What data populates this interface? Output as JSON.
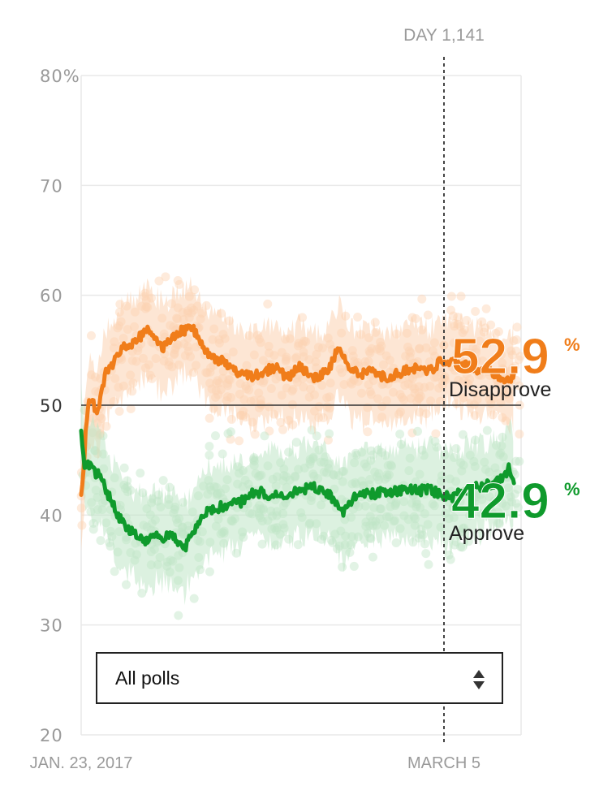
{
  "colors": {
    "disapprove": "#f07d1a",
    "approve": "#0f9a2c",
    "disapprove_light": "#fcd2b1",
    "approve_light": "#bfe5c6",
    "grid": "#e9e9e9",
    "text_muted": "#9a9a9a"
  },
  "chart_data": {
    "type": "line",
    "title": "",
    "xlabel": "",
    "ylabel": "",
    "x_tick_labels": [
      "JAN. 23, 2017",
      "MARCH 5"
    ],
    "y_ticks": [
      20,
      30,
      40,
      50,
      60,
      70,
      80
    ],
    "y_tick_labels": [
      "20",
      "30",
      "40",
      "50",
      "60",
      "70",
      "80%"
    ],
    "ylim": [
      20,
      80
    ],
    "x_range_days": [
      1,
      1174
    ],
    "reference_line": 50,
    "cursor": {
      "label": "DAY 1,141",
      "day": 1141
    },
    "grid": true,
    "series": [
      {
        "name": "Disapprove",
        "current_value": "52.9",
        "unit": "%",
        "points": [
          [
            1,
            41.5
          ],
          [
            6,
            43
          ],
          [
            12,
            47
          ],
          [
            18,
            49.5
          ],
          [
            25,
            50.5
          ],
          [
            35,
            50
          ],
          [
            45,
            49.3
          ],
          [
            55,
            51
          ],
          [
            65,
            53
          ],
          [
            80,
            53.5
          ],
          [
            100,
            54.5
          ],
          [
            120,
            55.5
          ],
          [
            140,
            55.7
          ],
          [
            160,
            56.3
          ],
          [
            180,
            57
          ],
          [
            200,
            56
          ],
          [
            220,
            55.3
          ],
          [
            240,
            55.8
          ],
          [
            260,
            56.7
          ],
          [
            280,
            56.8
          ],
          [
            300,
            57
          ],
          [
            320,
            55.5
          ],
          [
            340,
            54.5
          ],
          [
            360,
            54
          ],
          [
            380,
            54
          ],
          [
            400,
            53.6
          ],
          [
            420,
            53
          ],
          [
            440,
            52.7
          ],
          [
            460,
            52.6
          ],
          [
            480,
            53
          ],
          [
            500,
            53.2
          ],
          [
            520,
            53.4
          ],
          [
            540,
            52.8
          ],
          [
            560,
            52.6
          ],
          [
            580,
            53.5
          ],
          [
            600,
            53
          ],
          [
            620,
            52.5
          ],
          [
            640,
            52.8
          ],
          [
            660,
            53
          ],
          [
            690,
            55.5
          ],
          [
            720,
            53
          ],
          [
            750,
            52.9
          ],
          [
            780,
            53.1
          ],
          [
            810,
            52.5
          ],
          [
            840,
            52.8
          ],
          [
            870,
            53.2
          ],
          [
            900,
            53.4
          ],
          [
            930,
            53.1
          ],
          [
            960,
            54
          ],
          [
            990,
            54.1
          ],
          [
            1020,
            53.7
          ],
          [
            1050,
            53.3
          ],
          [
            1080,
            53.2
          ],
          [
            1110,
            52.8
          ],
          [
            1140,
            52.2
          ],
          [
            1155,
            52.9
          ]
        ]
      },
      {
        "name": "Approve",
        "current_value": "42.9",
        "unit": "%",
        "points": [
          [
            1,
            47.5
          ],
          [
            6,
            45.7
          ],
          [
            12,
            44
          ],
          [
            20,
            44.5
          ],
          [
            30,
            44.3
          ],
          [
            40,
            43.8
          ],
          [
            55,
            43.5
          ],
          [
            70,
            42
          ],
          [
            85,
            41
          ],
          [
            100,
            39.8
          ],
          [
            120,
            39
          ],
          [
            140,
            38.3
          ],
          [
            160,
            38
          ],
          [
            180,
            37.6
          ],
          [
            200,
            38.1
          ],
          [
            220,
            38
          ],
          [
            240,
            38.2
          ],
          [
            260,
            37.5
          ],
          [
            280,
            37.2
          ],
          [
            300,
            38.5
          ],
          [
            320,
            39.5
          ],
          [
            340,
            40.5
          ],
          [
            360,
            40.6
          ],
          [
            380,
            40.8
          ],
          [
            400,
            41
          ],
          [
            420,
            41.1
          ],
          [
            440,
            41.4
          ],
          [
            460,
            42
          ],
          [
            480,
            42.1
          ],
          [
            500,
            41.8
          ],
          [
            520,
            41.9
          ],
          [
            540,
            41.6
          ],
          [
            560,
            42
          ],
          [
            580,
            42.3
          ],
          [
            600,
            42.4
          ],
          [
            620,
            42.5
          ],
          [
            640,
            42.3
          ],
          [
            660,
            42
          ],
          [
            680,
            41
          ],
          [
            700,
            40.2
          ],
          [
            720,
            41.3
          ],
          [
            750,
            42
          ],
          [
            780,
            41.9
          ],
          [
            810,
            42.1
          ],
          [
            840,
            42.2
          ],
          [
            870,
            42.3
          ],
          [
            900,
            42.2
          ],
          [
            930,
            42.4
          ],
          [
            960,
            41.8
          ],
          [
            990,
            41.6
          ],
          [
            1020,
            42.3
          ],
          [
            1050,
            42.5
          ],
          [
            1080,
            42.7
          ],
          [
            1110,
            43
          ],
          [
            1130,
            43.5
          ],
          [
            1141,
            44.3
          ],
          [
            1155,
            42.9
          ]
        ]
      }
    ]
  },
  "controls": {
    "poll_filter": "All polls"
  }
}
